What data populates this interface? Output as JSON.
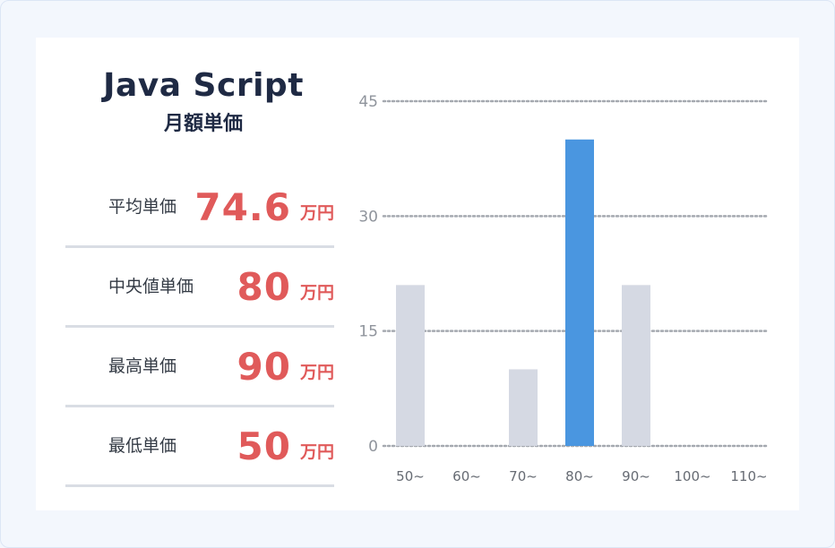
{
  "heading": {
    "language": "Java Script",
    "subtitle": "月額単価"
  },
  "stats": [
    {
      "label": "平均単価",
      "value": "74.6",
      "unit": "万円"
    },
    {
      "label": "中央値単価",
      "value": "80",
      "unit": "万円"
    },
    {
      "label": "最高単価",
      "value": "90",
      "unit": "万円"
    },
    {
      "label": "最低単価",
      "value": "50",
      "unit": "万円"
    }
  ],
  "colors": {
    "accent_value": "#e05a5a",
    "bar_default": "#d5d9e3",
    "bar_highlight": "#4a96e0",
    "grid": "#a5a9b0",
    "text_dark": "#1f2a44"
  },
  "chart_data": {
    "type": "bar",
    "categories": [
      "50~",
      "60~",
      "70~",
      "80~",
      "90~",
      "100~",
      "110~"
    ],
    "values": [
      21,
      0,
      10,
      40,
      21,
      0,
      0
    ],
    "highlight_index": 3,
    "yticks": [
      0,
      15,
      30,
      45
    ],
    "ylim": [
      0,
      45
    ],
    "grid": true,
    "grid_style": "dotted"
  }
}
